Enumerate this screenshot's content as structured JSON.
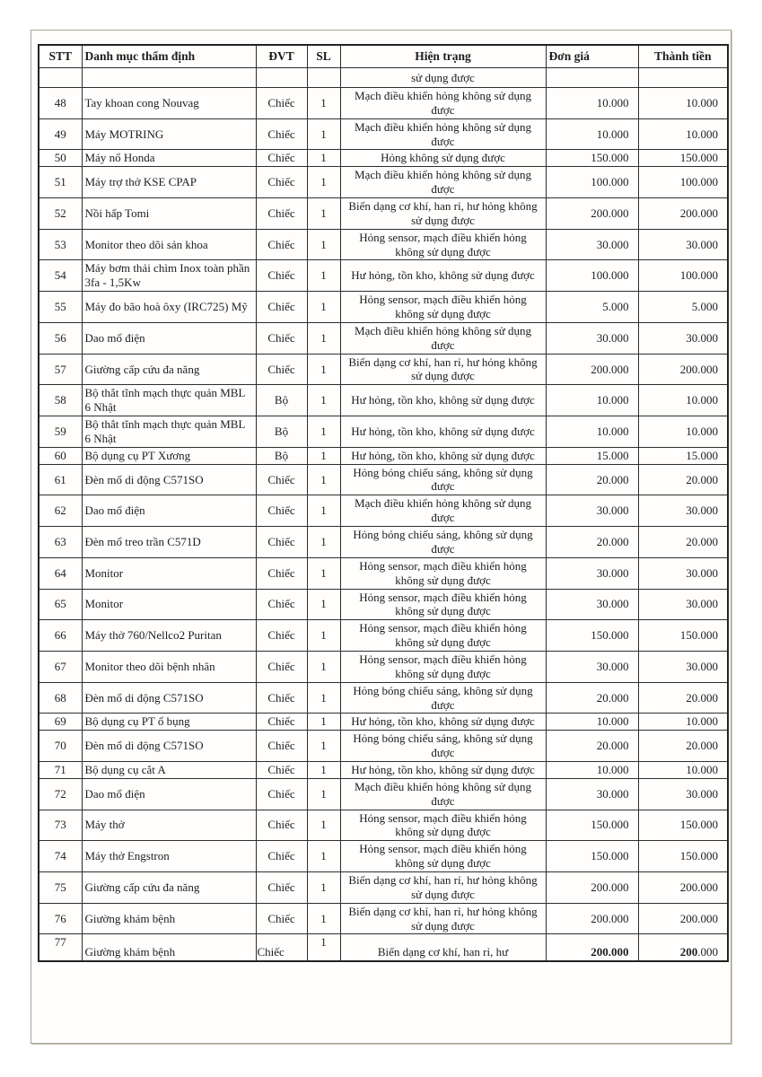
{
  "colors": {
    "text": "#1d1d1d",
    "table_border": "#2e2e2e",
    "page_frame_border": "#a7a494",
    "background": "#ffffff"
  },
  "table": {
    "headers": [
      "STT",
      "Danh mục thẩm định",
      "ĐVT",
      "SL",
      "Hiện trạng",
      "Đơn giá",
      "Thành tiền"
    ],
    "carryover": {
      "status": "sử dụng được"
    },
    "rows": [
      {
        "stt": "48",
        "name": "Tay khoan cong Nouvag",
        "unit": "Chiếc",
        "qty": "1",
        "status": "Mạch điều khiển hỏng không sử dụng được",
        "unit_price": "10.000",
        "total": "10.000"
      },
      {
        "stt": "49",
        "name": "Máy MOTRING",
        "unit": "Chiếc",
        "qty": "1",
        "status": "Mạch điều khiển hỏng không sử dụng được",
        "unit_price": "10.000",
        "total": "10.000"
      },
      {
        "stt": "50",
        "name": "Máy nổ Honda",
        "unit": "Chiếc",
        "qty": "1",
        "status": "Hỏng không sử dụng được",
        "unit_price": "150.000",
        "total": "150.000"
      },
      {
        "stt": "51",
        "name": "Máy trợ thở KSE CPAP",
        "unit": "Chiếc",
        "qty": "1",
        "status": "Mạch điều khiển hỏng không sử dụng được",
        "unit_price": "100.000",
        "total": "100.000"
      },
      {
        "stt": "52",
        "name": "Nồi hấp Tomi",
        "unit": "Chiếc",
        "qty": "1",
        "status": "Biến dạng cơ khí, han rỉ, hư hỏng không sử dụng được",
        "unit_price": "200.000",
        "total": "200.000"
      },
      {
        "stt": "53",
        "name": "Monitor theo dõi sản khoa",
        "unit": "Chiếc",
        "qty": "1",
        "status": "Hỏng sensor, mạch điều khiển hỏng không sử dụng được",
        "unit_price": "30.000",
        "total": "30.000"
      },
      {
        "stt": "54",
        "name": "Máy bơm thải chìm Inox toàn phần 3fa - 1,5Kw",
        "unit": "Chiếc",
        "qty": "1",
        "status": "Hư hỏng, tồn kho, không sử dụng được",
        "unit_price": "100.000",
        "total": "100.000"
      },
      {
        "stt": "55",
        "name": "Máy đo bão hoà ôxy (IRC725) Mỹ",
        "unit": "Chiếc",
        "qty": "1",
        "status": "Hỏng sensor, mạch điều khiển hỏng không sử dụng được",
        "unit_price": "5.000",
        "total": "5.000"
      },
      {
        "stt": "56",
        "name": "Dao mổ điện",
        "unit": "Chiếc",
        "qty": "1",
        "status": "Mạch điều khiển hỏng không sử dụng được",
        "unit_price": "30.000",
        "total": "30.000"
      },
      {
        "stt": "57",
        "name": "Giường cấp cứu đa năng",
        "unit": "Chiếc",
        "qty": "1",
        "status": "Biến dạng cơ khí, han rỉ, hư hỏng không sử dụng được",
        "unit_price": "200.000",
        "total": "200.000"
      },
      {
        "stt": "58",
        "name": "Bộ thắt tĩnh mạch thực quản MBL 6 Nhật",
        "unit": "Bộ",
        "qty": "1",
        "status": "Hư hỏng, tồn kho, không sử dụng được",
        "unit_price": "10.000",
        "total": "10.000"
      },
      {
        "stt": "59",
        "name": "Bộ thắt tĩnh mạch thực quản MBL 6 Nhật",
        "unit": "Bộ",
        "qty": "1",
        "status": "Hư hỏng, tồn kho, không sử dụng được",
        "unit_price": "10.000",
        "total": "10.000"
      },
      {
        "stt": "60",
        "name": "Bộ dụng cụ PT Xương",
        "unit": "Bộ",
        "qty": "1",
        "status": "Hư hỏng, tồn kho, không sử dụng được",
        "unit_price": "15.000",
        "total": "15.000"
      },
      {
        "stt": "61",
        "name": "Đèn mổ di động C571SO",
        "unit": "Chiếc",
        "qty": "1",
        "status": "Hỏng bóng chiếu sáng, không sử dụng được",
        "unit_price": "20.000",
        "total": "20.000"
      },
      {
        "stt": "62",
        "name": "Dao mổ điện",
        "unit": "Chiếc",
        "qty": "1",
        "status": "Mạch điều khiển hỏng không sử dụng được",
        "unit_price": "30.000",
        "total": "30.000"
      },
      {
        "stt": "63",
        "name": "Đèn mổ treo trần C571D",
        "unit": "Chiếc",
        "qty": "1",
        "status": "Hỏng bóng chiếu sáng, không sử dụng được",
        "unit_price": "20.000",
        "total": "20.000"
      },
      {
        "stt": "64",
        "name": "Monitor",
        "unit": "Chiếc",
        "qty": "1",
        "status": "Hỏng sensor, mạch điều khiển hỏng không sử dụng được",
        "unit_price": "30.000",
        "total": "30.000"
      },
      {
        "stt": "65",
        "name": "Monitor",
        "unit": "Chiếc",
        "qty": "1",
        "status": "Hỏng sensor, mạch điều khiển hỏng không sử dụng được",
        "unit_price": "30.000",
        "total": "30.000"
      },
      {
        "stt": "66",
        "name": "Máy thở 760/Nellco2 Puritan",
        "unit": "Chiếc",
        "qty": "1",
        "status": "Hỏng sensor, mạch điều khiển hỏng không sử dụng được",
        "unit_price": "150.000",
        "total": "150.000"
      },
      {
        "stt": "67",
        "name": "Monitor theo dõi bệnh nhân",
        "unit": "Chiếc",
        "qty": "1",
        "status": "Hỏng sensor, mạch điều khiển hỏng không sử dụng được",
        "unit_price": "30.000",
        "total": "30.000"
      },
      {
        "stt": "68",
        "name": "Đèn mổ di động C571SO",
        "unit": "Chiếc",
        "qty": "1",
        "status": "Hỏng bóng chiếu sáng, không sử dụng được",
        "unit_price": "20.000",
        "total": "20.000"
      },
      {
        "stt": "69",
        "name": "Bộ dụng cụ PT ổ bụng",
        "unit": "Chiếc",
        "qty": "1",
        "status": "Hư hỏng, tồn kho, không sử dụng được",
        "unit_price": "10.000",
        "total": "10.000"
      },
      {
        "stt": "70",
        "name": "Đèn mổ di động C571SO",
        "unit": "Chiếc",
        "qty": "1",
        "status": "Hỏng bóng chiếu sáng, không sử dụng được",
        "unit_price": "20.000",
        "total": "20.000"
      },
      {
        "stt": "71",
        "name": "Bộ dụng cụ cắt A",
        "unit": "Chiếc",
        "qty": "1",
        "status": "Hư hỏng, tồn kho, không sử dụng được",
        "unit_price": "10.000",
        "total": "10.000"
      },
      {
        "stt": "72",
        "name": "Dao mổ điện",
        "unit": "Chiếc",
        "qty": "1",
        "status": "Mạch điều khiển hỏng không sử dụng được",
        "unit_price": "30.000",
        "total": "30.000"
      },
      {
        "stt": "73",
        "name": "Máy thở",
        "unit": "Chiếc",
        "qty": "1",
        "status": "Hỏng sensor, mạch điều khiển hỏng không sử dụng được",
        "unit_price": "150.000",
        "total": "150.000"
      },
      {
        "stt": "74",
        "name": "Máy thở Engstron",
        "unit": "Chiếc",
        "qty": "1",
        "status": "Hỏng sensor, mạch điều khiển hỏng không sử dụng được",
        "unit_price": "150.000",
        "total": "150.000"
      },
      {
        "stt": "75",
        "name": "Giường cấp cứu đa năng",
        "unit": "Chiếc",
        "qty": "1",
        "status": "Biến dạng cơ khí, han rỉ, hư hỏng không sử dụng được",
        "unit_price": "200.000",
        "total": "200.000"
      },
      {
        "stt": "76",
        "name": "Giường khám bệnh",
        "unit": "Chiếc",
        "qty": "1",
        "status": "Biến dạng cơ khí, han rỉ, hư hỏng không sử dụng được",
        "unit_price": "200.000",
        "total": "200.000"
      },
      {
        "stt": "77",
        "name": "Giường khám bệnh",
        "unit": "Chiếc",
        "qty": "1",
        "status": "Biến dạng cơ khí, han rỉ, hư",
        "unit_price": "200.000",
        "total_bold": "200",
        "total_rest": ".000",
        "cut_off": true
      }
    ]
  }
}
